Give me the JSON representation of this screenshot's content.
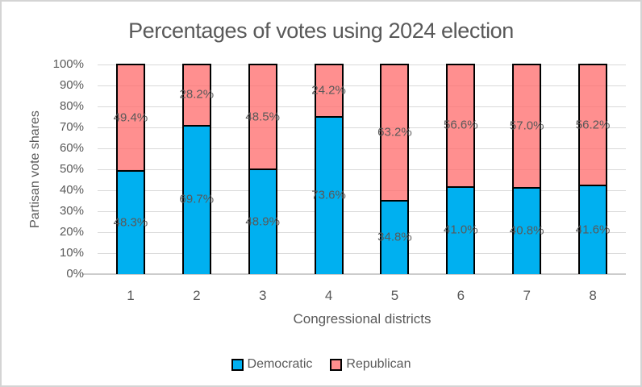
{
  "chart_data": {
    "type": "bar",
    "subtype": "stacked-100",
    "title": "Percentages of votes using 2024 election",
    "xlabel": "Congressional districts",
    "ylabel": "Partisan vote shares",
    "categories": [
      "1",
      "2",
      "3",
      "4",
      "5",
      "6",
      "7",
      "8"
    ],
    "series": [
      {
        "name": "Democratic",
        "color": "#00B0F0",
        "fill": "rgba(0,176,240,1)",
        "values": [
          48.3,
          69.7,
          48.9,
          73.6,
          34.8,
          41.0,
          40.8,
          41.6
        ]
      },
      {
        "name": "Republican",
        "color": "#FF8E8E",
        "fill": "rgba(255,105,105,0.75)",
        "values": [
          49.4,
          28.2,
          48.5,
          24.2,
          63.2,
          56.6,
          57.0,
          56.2
        ]
      }
    ],
    "y_ticks": [
      "0%",
      "10%",
      "20%",
      "30%",
      "40%",
      "50%",
      "60%",
      "70%",
      "80%",
      "90%",
      "100%"
    ],
    "ylim": [
      0,
      100
    ],
    "grid": true,
    "legend_position": "bottom",
    "value_label_suffix": "%"
  },
  "colors": {
    "text": "#595959",
    "gridline": "#d9d9d9",
    "axis_line": "#cccccc",
    "bar_border": "#000000",
    "background": "#ffffff",
    "frame_border": "#d4d4d4"
  }
}
